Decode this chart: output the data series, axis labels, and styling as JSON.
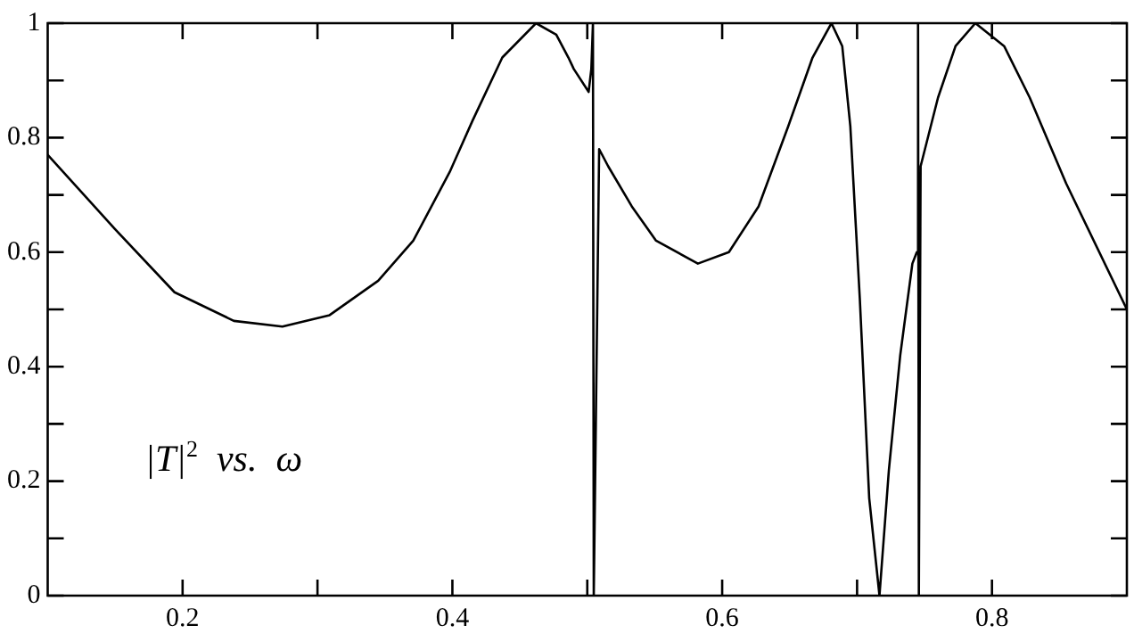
{
  "chart_data": {
    "type": "line",
    "annotations": [
      "|T|$^{2}$  vs.  ω"
    ],
    "xlim": [
      0.1,
      0.9
    ],
    "ylim": [
      0,
      1
    ],
    "xticks": [
      0.2,
      {
        "value": 0.3,
        "label": null
      },
      0.4,
      {
        "value": 0.5,
        "label": null
      },
      0.6,
      {
        "value": 0.7,
        "label": null
      },
      0.8
    ],
    "yticks": [
      0,
      {
        "value": 0.1,
        "label": null
      },
      0.2,
      {
        "value": 0.3,
        "label": null
      },
      0.4,
      {
        "value": 0.5,
        "label": null
      },
      0.6,
      {
        "value": 0.7,
        "label": null
      },
      0.8,
      {
        "value": 0.9,
        "label": null
      },
      1
    ],
    "grid": false,
    "legend": false,
    "marker": "none",
    "line_style": "solid",
    "series": [
      {
        "color": "#000000",
        "x": [
          0.1,
          0.15,
          0.194,
          0.238,
          0.274,
          0.309,
          0.345,
          0.371,
          0.398,
          0.415,
          0.437,
          0.462,
          0.477,
          0.486,
          0.49,
          0.501,
          0.503,
          0.5042,
          0.5048,
          0.5088,
          0.5155,
          0.533,
          0.551,
          0.582,
          0.605,
          0.627,
          0.649,
          0.667,
          0.681,
          0.689,
          0.695,
          0.702,
          0.709,
          0.7166,
          0.7236,
          0.732,
          0.741,
          0.7443,
          0.7452,
          0.7458,
          0.7471,
          0.76,
          0.773,
          0.7877,
          0.809,
          0.828,
          0.855,
          0.9
        ],
        "values": [
          0.77,
          0.64,
          0.53,
          0.48,
          0.47,
          0.49,
          0.55,
          0.62,
          0.74,
          0.83,
          0.94,
          1.0,
          0.98,
          0.94,
          0.92,
          0.88,
          0.92,
          1.0,
          0.0,
          0.78,
          0.75,
          0.68,
          0.62,
          0.58,
          0.6,
          0.68,
          0.82,
          0.94,
          1.0,
          0.96,
          0.82,
          0.52,
          0.17,
          0.0,
          0.22,
          0.42,
          0.58,
          0.6,
          1.0,
          0.0,
          0.75,
          0.87,
          0.96,
          1.0,
          0.96,
          0.87,
          0.72,
          0.5
        ]
      }
    ]
  }
}
